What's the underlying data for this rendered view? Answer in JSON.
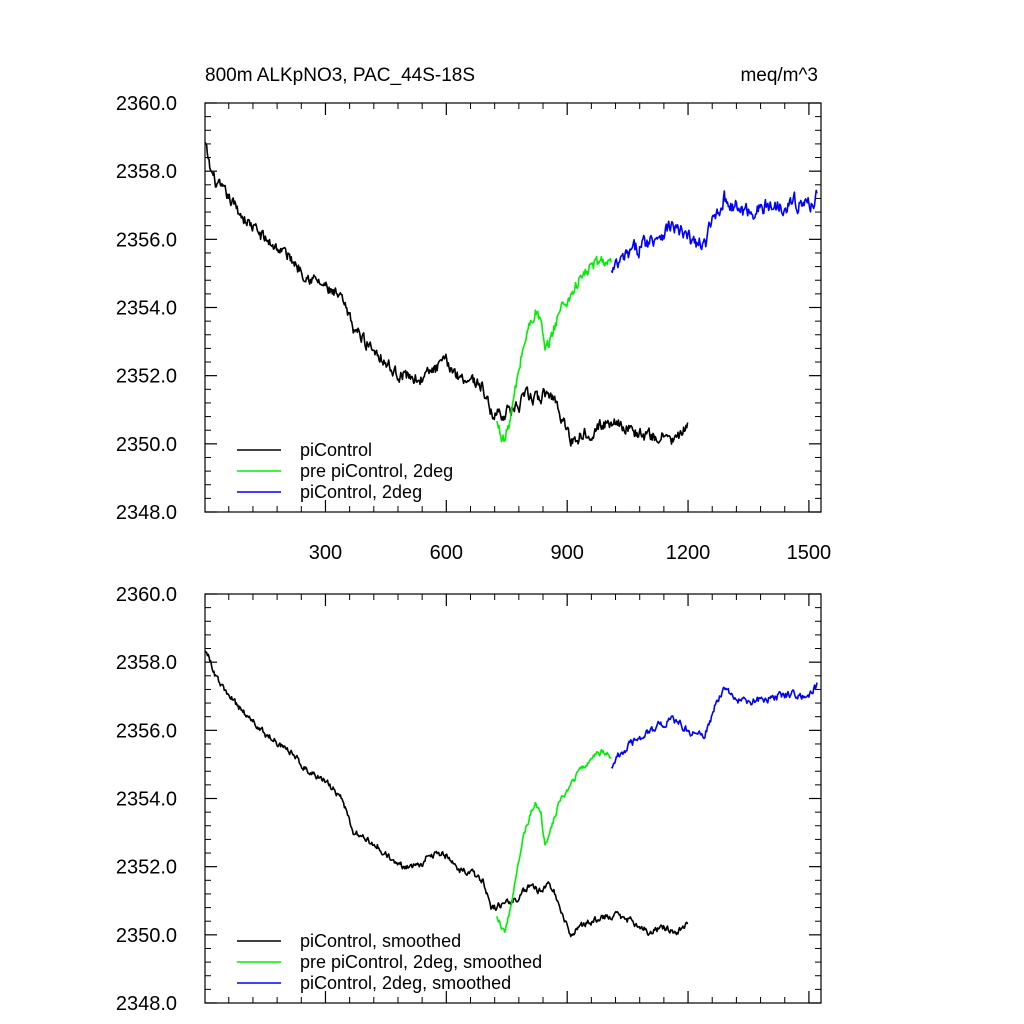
{
  "chart_data": [
    {
      "type": "line",
      "title": "800m ALKpNO3, PAC_44S-18S",
      "units_label": "meq/m^3",
      "xlabel": "",
      "ylabel": "",
      "xlim": [
        1,
        1530
      ],
      "ylim": [
        2348.0,
        2360.0
      ],
      "x_ticks": [
        300,
        600,
        900,
        1200,
        1500
      ],
      "x_tick_labels": [
        "300",
        "600",
        "900",
        "1200",
        "1500"
      ],
      "show_x_tick_labels": true,
      "y_ticks": [
        2348,
        2350,
        2352,
        2354,
        2356,
        2358,
        2360
      ],
      "y_tick_labels": [
        "2348.0",
        "2350.0",
        "2352.0",
        "2354.0",
        "2356.0",
        "2358.0",
        "2360.0"
      ],
      "grid": false,
      "legend_position": "bottom-left",
      "series": [
        {
          "name": "piControl",
          "color": "#000000",
          "noise": 0.22,
          "x": [
            1,
            15,
            30,
            60,
            100,
            150,
            200,
            250,
            300,
            340,
            370,
            400,
            430,
            470,
            500,
            540,
            560,
            600,
            630,
            660,
            690,
            710,
            740,
            760,
            780,
            800,
            830,
            850,
            870,
            890,
            910,
            940,
            980,
            1020,
            1060,
            1100,
            1140,
            1170,
            1200
          ],
          "values": [
            2358.8,
            2358.0,
            2357.6,
            2357.2,
            2356.6,
            2356.0,
            2355.6,
            2355.0,
            2354.6,
            2354.2,
            2353.4,
            2353.0,
            2352.7,
            2352.1,
            2352.0,
            2351.9,
            2352.1,
            2352.4,
            2352.0,
            2351.9,
            2351.7,
            2350.9,
            2350.9,
            2351.0,
            2351.1,
            2351.4,
            2351.3,
            2351.5,
            2351.3,
            2350.7,
            2350.1,
            2350.3,
            2350.5,
            2350.7,
            2350.4,
            2350.2,
            2350.2,
            2350.1,
            2350.5
          ]
        },
        {
          "name": "pre piControl, 2deg",
          "color": "#00ee00",
          "noise": 0.22,
          "x": [
            725,
            735,
            745,
            760,
            775,
            790,
            805,
            820,
            835,
            845,
            860,
            880,
            900,
            930,
            960,
            990,
            1010
          ],
          "values": [
            2350.6,
            2350.3,
            2350.1,
            2350.8,
            2351.8,
            2352.8,
            2353.4,
            2353.9,
            2353.6,
            2352.6,
            2353.1,
            2353.9,
            2354.2,
            2354.8,
            2355.2,
            2355.4,
            2355.2
          ]
        },
        {
          "name": "piControl, 2deg",
          "color": "#0000ff",
          "noise": 0.28,
          "x": [
            1010,
            1040,
            1080,
            1120,
            1160,
            1200,
            1240,
            1270,
            1290,
            1310,
            1340,
            1380,
            1420,
            1460,
            1500,
            1520
          ],
          "values": [
            2355.0,
            2355.4,
            2355.8,
            2356.1,
            2356.4,
            2356.0,
            2355.8,
            2356.8,
            2357.2,
            2357.0,
            2356.8,
            2356.9,
            2357.0,
            2357.1,
            2357.0,
            2357.3
          ]
        }
      ]
    },
    {
      "type": "line",
      "title": "",
      "units_label": "",
      "xlabel": "",
      "ylabel": "",
      "xlim": [
        1,
        1530
      ],
      "ylim": [
        2348.0,
        2360.0
      ],
      "x_ticks": [
        300,
        600,
        900,
        1200,
        1500
      ],
      "show_x_tick_labels": false,
      "y_ticks": [
        2348,
        2350,
        2352,
        2354,
        2356,
        2358,
        2360
      ],
      "y_tick_labels": [
        "2348.0",
        "2350.0",
        "2352.0",
        "2354.0",
        "2356.0",
        "2358.0",
        "2360.0"
      ],
      "grid": false,
      "legend_position": "bottom-left",
      "series": [
        {
          "name": "piControl, smoothed",
          "color": "#000000",
          "noise": 0.12,
          "x": [
            1,
            15,
            30,
            60,
            100,
            150,
            200,
            250,
            300,
            340,
            370,
            400,
            430,
            470,
            500,
            540,
            560,
            600,
            630,
            660,
            690,
            710,
            740,
            760,
            780,
            800,
            830,
            850,
            870,
            890,
            910,
            940,
            980,
            1020,
            1060,
            1100,
            1140,
            1170,
            1200
          ],
          "values": [
            2358.4,
            2358.0,
            2357.5,
            2357.0,
            2356.5,
            2355.9,
            2355.5,
            2354.9,
            2354.5,
            2354.0,
            2353.0,
            2352.8,
            2352.6,
            2352.1,
            2352.0,
            2352.1,
            2352.4,
            2352.3,
            2351.9,
            2351.8,
            2351.6,
            2350.8,
            2350.9,
            2351.0,
            2351.1,
            2351.4,
            2351.3,
            2351.5,
            2351.2,
            2350.6,
            2350.0,
            2350.3,
            2350.5,
            2350.6,
            2350.4,
            2350.1,
            2350.2,
            2350.1,
            2350.3
          ]
        },
        {
          "name": "pre piControl, 2deg, smoothed",
          "color": "#00ee00",
          "noise": 0.1,
          "x": [
            725,
            735,
            745,
            760,
            775,
            790,
            805,
            820,
            835,
            845,
            860,
            880,
            900,
            930,
            960,
            990,
            1010
          ],
          "values": [
            2350.6,
            2350.3,
            2350.1,
            2350.8,
            2351.8,
            2352.8,
            2353.4,
            2353.9,
            2353.6,
            2352.6,
            2353.1,
            2353.9,
            2354.2,
            2354.8,
            2355.2,
            2355.4,
            2355.2
          ]
        },
        {
          "name": "piControl, 2deg, smoothed",
          "color": "#0000ff",
          "noise": 0.14,
          "x": [
            1010,
            1040,
            1080,
            1120,
            1160,
            1200,
            1240,
            1270,
            1290,
            1310,
            1340,
            1380,
            1420,
            1460,
            1500,
            1520
          ],
          "values": [
            2355.0,
            2355.4,
            2355.8,
            2356.1,
            2356.3,
            2356.0,
            2355.8,
            2356.8,
            2357.2,
            2357.0,
            2356.8,
            2356.9,
            2357.0,
            2357.1,
            2357.0,
            2357.3
          ]
        }
      ]
    }
  ]
}
